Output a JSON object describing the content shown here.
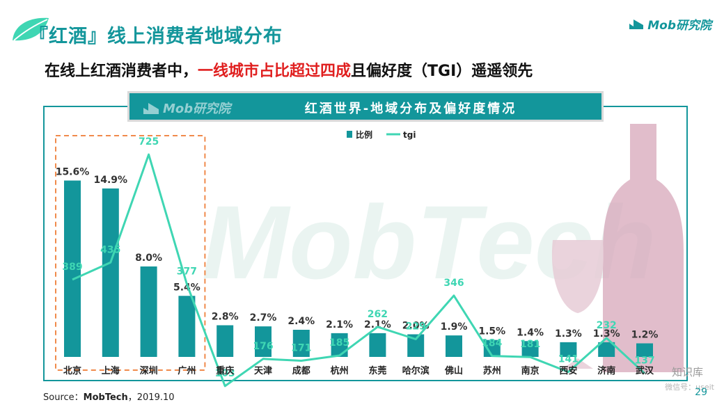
{
  "header": {
    "title": "『红酒』线上消费者地域分布",
    "logo": "Mob研究院",
    "subtitle_before": "在线上红酒消费者中，",
    "subtitle_highlight": "一线城市占比超过四成",
    "subtitle_after": "且偏好度（TGI）遥遥领先"
  },
  "banner": {
    "logo": "Mob研究院",
    "title": "红酒世界-地域分布及偏好度情况"
  },
  "background_watermark": "MobTech",
  "chart_data": {
    "type": "bar",
    "categories": [
      "北京",
      "上海",
      "深圳",
      "广州",
      "重庆",
      "天津",
      "成都",
      "杭州",
      "东莞",
      "哈尔滨",
      "佛山",
      "苏州",
      "南京",
      "西安",
      "济南",
      "武汉"
    ],
    "series": [
      {
        "name": "比例",
        "type": "bar",
        "values": [
          15.6,
          14.9,
          8.0,
          5.4,
          2.8,
          2.7,
          2.4,
          2.1,
          2.1,
          2.0,
          1.9,
          1.5,
          1.4,
          1.3,
          1.3,
          1.2
        ],
        "labels": [
          "15.6%",
          "14.9%",
          "8.0%",
          "5.4%",
          "2.8%",
          "2.7%",
          "2.4%",
          "2.1%",
          "2.1%",
          "2.0%",
          "1.9%",
          "1.5%",
          "1.4%",
          "1.3%",
          "1.3%",
          "1.2%"
        ]
      },
      {
        "name": "tgi",
        "type": "line",
        "values": [
          389,
          435,
          725,
          377,
          103,
          176,
          171,
          185,
          262,
          229,
          346,
          184,
          181,
          141,
          232,
          137
        ]
      }
    ],
    "bar_ylim": [
      0,
      32
    ],
    "line_ylim": [
      0,
      1000
    ],
    "legend_position": "top-center",
    "highlight_box": "北京-广州",
    "colors": {
      "bar": "#13969b",
      "line": "#3fd6b3",
      "highlight_box": "#f08a4b"
    }
  },
  "footer": {
    "source_prefix": "Source：",
    "source_name": "MobTech",
    "source_date": "，2019.10",
    "page_number": "29",
    "watermark": "知识库",
    "watermark_sub": "微信号：useit"
  }
}
